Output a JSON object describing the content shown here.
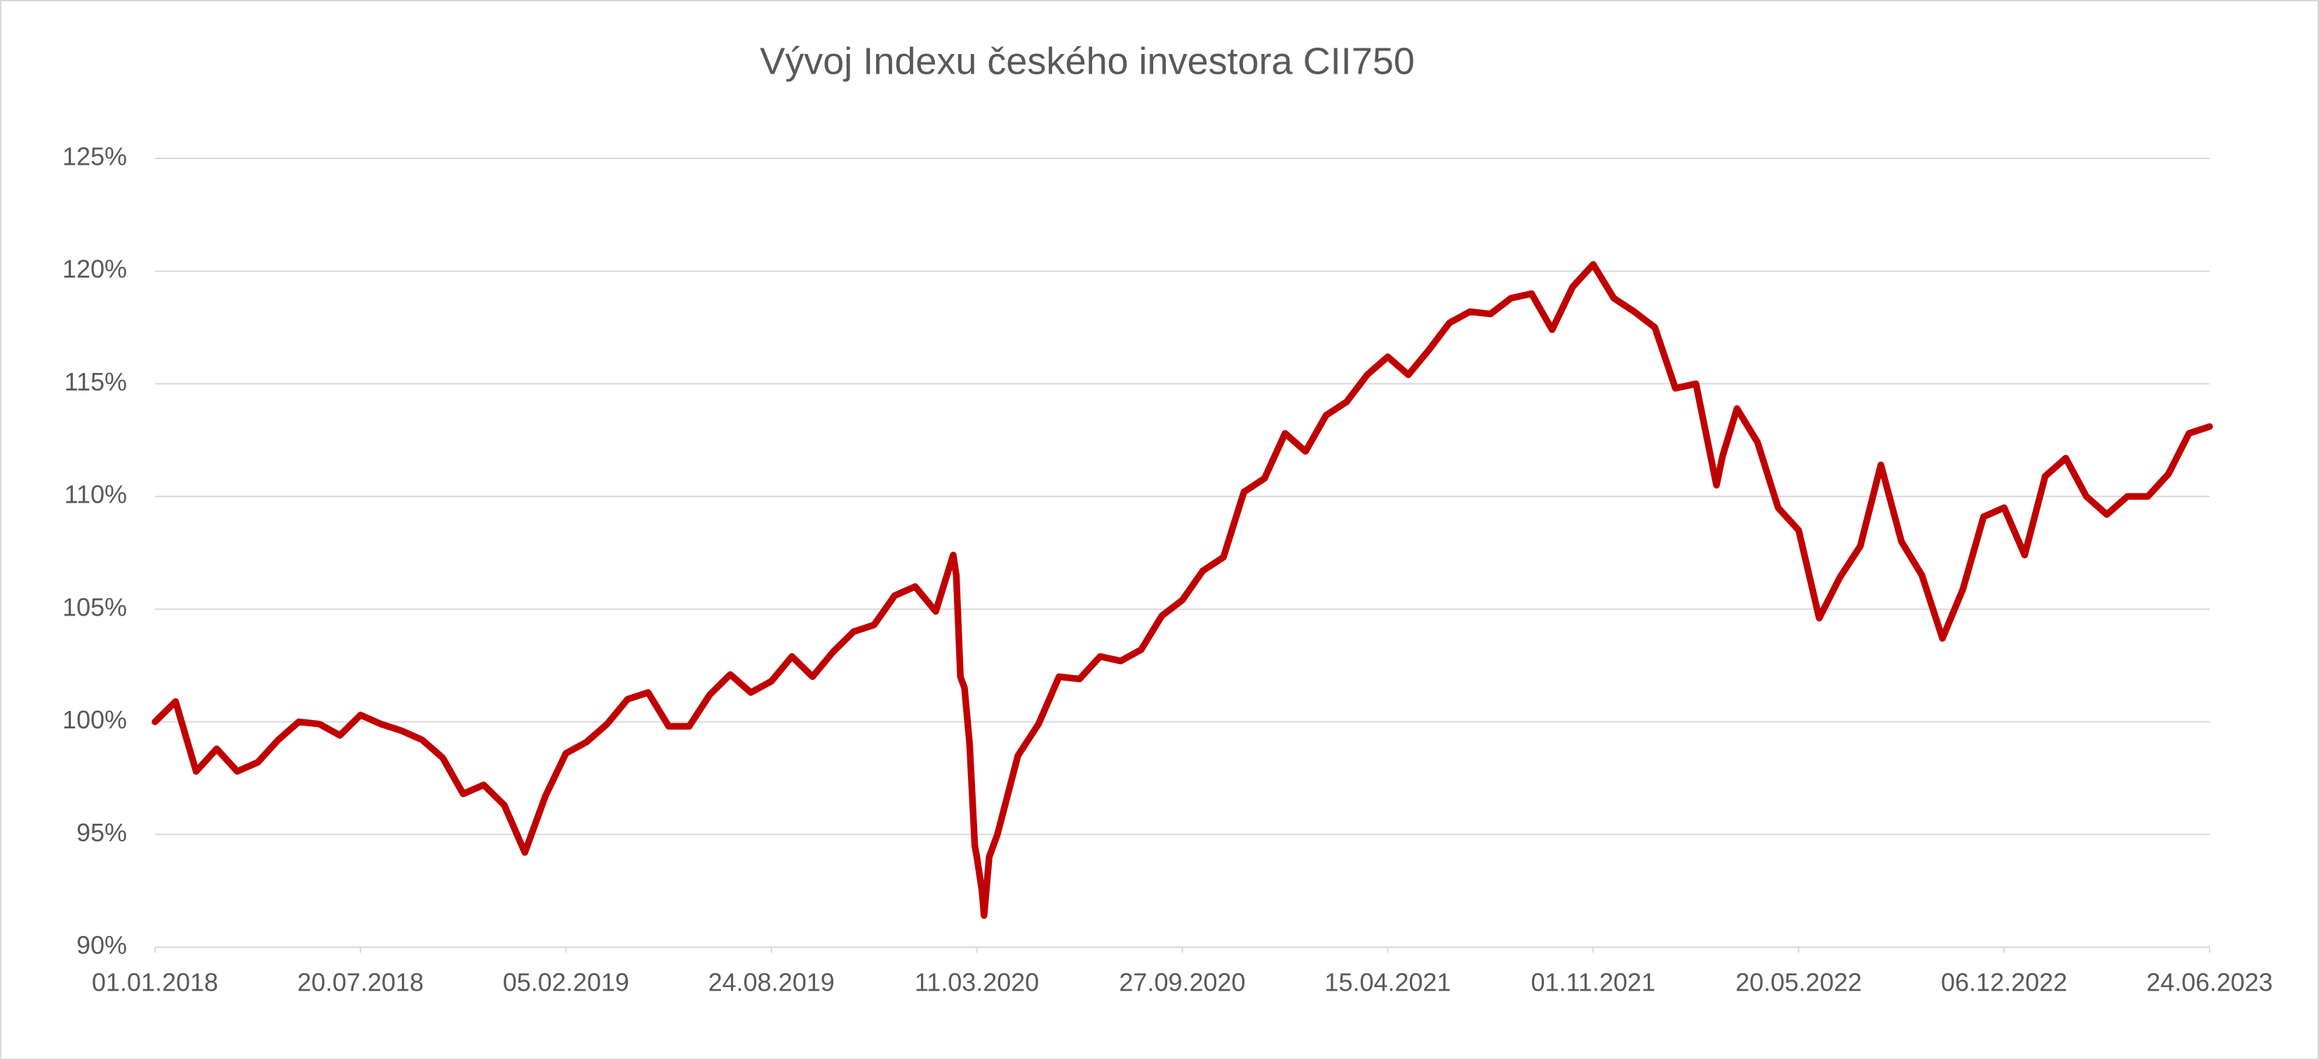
{
  "chart_data": {
    "type": "line",
    "title": "Vývoj Indexu českého investora CII750",
    "xlim": [
      "01.01.2018",
      "24.06.2023"
    ],
    "xticks": [
      "01.01.2018",
      "20.07.2018",
      "05.02.2019",
      "24.08.2019",
      "11.03.2020",
      "27.09.2020",
      "15.04.2021",
      "01.11.2021",
      "20.05.2022",
      "06.12.2022",
      "24.06.2023"
    ],
    "ylim": [
      90,
      125
    ],
    "yticks": [
      {
        "value": 90,
        "label": "90%"
      },
      {
        "value": 95,
        "label": "95%"
      },
      {
        "value": 100,
        "label": "100%"
      },
      {
        "value": 105,
        "label": "105%"
      },
      {
        "value": 110,
        "label": "110%"
      },
      {
        "value": 115,
        "label": "115%"
      },
      {
        "value": 120,
        "label": "120%"
      },
      {
        "value": 125,
        "label": "125%"
      }
    ],
    "grid": true,
    "series": [
      {
        "name": "CII750",
        "color": "#c00000",
        "x": [
          "01.01.2018",
          "21.01.2018",
          "10.02.2018",
          "02.03.2018",
          "22.03.2018",
          "11.04.2018",
          "01.05.2018",
          "21.05.2018",
          "10.06.2018",
          "30.06.2018",
          "20.07.2018",
          "09.08.2018",
          "29.08.2018",
          "18.09.2018",
          "08.10.2018",
          "28.10.2018",
          "17.11.2018",
          "07.12.2018",
          "27.12.2018",
          "16.01.2019",
          "05.02.2019",
          "25.02.2019",
          "17.03.2019",
          "06.04.2019",
          "26.04.2019",
          "16.05.2019",
          "05.06.2019",
          "25.06.2019",
          "15.07.2019",
          "04.08.2019",
          "24.08.2019",
          "13.09.2019",
          "03.10.2019",
          "23.10.2019",
          "12.11.2019",
          "02.12.2019",
          "22.12.2019",
          "11.01.2020",
          "31.01.2020",
          "17.02.2020",
          "20.02.2020",
          "24.02.2020",
          "28.02.2020",
          "04.03.2020",
          "09.03.2020",
          "11.03.2020",
          "16.03.2020",
          "18.03.2020",
          "23.03.2020",
          "31.03.2020",
          "20.04.2020",
          "10.05.2020",
          "30.05.2020",
          "19.06.2020",
          "09.07.2020",
          "29.07.2020",
          "18.08.2020",
          "07.09.2020",
          "27.09.2020",
          "17.10.2020",
          "06.11.2020",
          "26.11.2020",
          "16.12.2020",
          "05.01.2021",
          "25.01.2021",
          "14.02.2021",
          "06.03.2021",
          "26.03.2021",
          "15.04.2021",
          "05.05.2021",
          "25.05.2021",
          "14.06.2021",
          "04.07.2021",
          "24.07.2021",
          "13.08.2021",
          "02.09.2021",
          "22.09.2021",
          "12.10.2021",
          "01.11.2021",
          "21.11.2021",
          "11.12.2021",
          "31.12.2021",
          "20.01.2022",
          "09.02.2022",
          "01.03.2022",
          "07.03.2022",
          "21.03.2022",
          "10.04.2022",
          "30.04.2022",
          "20.05.2022",
          "09.06.2022",
          "29.06.2022",
          "19.07.2022",
          "08.08.2022",
          "28.08.2022",
          "17.09.2022",
          "07.10.2022",
          "27.10.2022",
          "16.11.2022",
          "06.12.2022",
          "26.12.2022",
          "15.01.2023",
          "04.02.2023",
          "24.02.2023",
          "16.03.2023",
          "05.04.2023",
          "25.04.2023",
          "15.05.2023",
          "04.06.2023",
          "24.06.2023"
        ],
        "values": [
          100.0,
          100.9,
          97.8,
          98.8,
          97.8,
          98.2,
          99.2,
          100.0,
          99.9,
          99.4,
          100.3,
          99.9,
          99.6,
          99.2,
          98.4,
          96.8,
          97.2,
          96.3,
          94.2,
          96.7,
          98.6,
          99.1,
          99.9,
          101.0,
          101.3,
          99.8,
          99.8,
          101.2,
          102.1,
          101.3,
          101.8,
          102.9,
          102.0,
          103.1,
          104.0,
          104.3,
          105.6,
          106.0,
          104.9,
          107.4,
          106.5,
          102.0,
          101.5,
          99.0,
          94.5,
          94.0,
          92.5,
          91.4,
          94.0,
          95.0,
          98.5,
          99.9,
          102.0,
          101.9,
          102.9,
          102.7,
          103.2,
          104.7,
          105.4,
          106.7,
          107.3,
          110.2,
          110.8,
          112.8,
          112.0,
          113.6,
          114.2,
          115.4,
          116.2,
          115.4,
          116.5,
          117.7,
          118.2,
          118.1,
          118.8,
          119.0,
          117.4,
          119.3,
          120.3,
          118.8,
          118.2,
          117.5,
          114.8,
          115.0,
          110.5,
          111.8,
          113.9,
          112.4,
          109.5,
          108.5,
          104.6,
          106.4,
          107.8,
          111.4,
          108.0,
          106.5,
          103.7,
          105.9,
          109.1,
          109.5,
          107.4,
          110.9,
          111.7,
          110.0,
          109.2,
          110.0,
          110.0,
          111.0,
          112.8,
          113.1
        ]
      }
    ]
  }
}
